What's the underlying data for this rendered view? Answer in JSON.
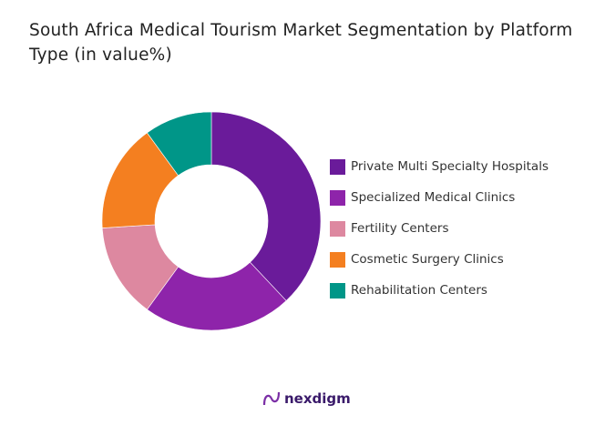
{
  "chart_data": {
    "type": "pie",
    "donut": true,
    "title": "South Africa Medical Tourism Market Segmentation by Platform Type (in value%)",
    "categories": [
      "Private Multi Specialty Hospitals",
      "Specialized Medical  Clinics",
      "Fertility Centers",
      "Cosmetic Surgery Clinics",
      "Rehabilitation Centers"
    ],
    "values": [
      38,
      22,
      14,
      16,
      10
    ],
    "colors": [
      "#6a1b9a",
      "#8e24aa",
      "#dd88a0",
      "#f47f20",
      "#009688"
    ],
    "legend_position": "right"
  },
  "logo": {
    "text": "nexdigm"
  }
}
